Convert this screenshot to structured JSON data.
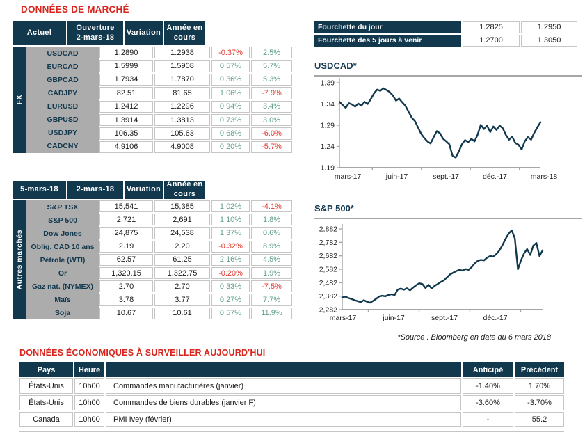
{
  "titles": {
    "market": "DONNÉES DE MARCHÉ",
    "econ": "DONNÉES ÉCONOMIQUES À SURVEILLER AUJOURD'HUI"
  },
  "colors": {
    "navy": "#12384E",
    "title_red": "#D9251D",
    "positive_green": "#5FA08B",
    "negative_red": "#E03A31",
    "label_gray_bg": "#ACACAC",
    "axis_gray": "#A6A6A6"
  },
  "fx": {
    "group": "FX",
    "headers": [
      {
        "l1": "Actuel",
        "l2": ""
      },
      {
        "l1": "Ouverture",
        "l2": "2-mars-18"
      },
      {
        "l1": "Variation",
        "l2": ""
      },
      {
        "l1": "Année en",
        "l2": "cours"
      }
    ],
    "rows": [
      {
        "label": "USDCAD",
        "v1": "1.2890",
        "v2": "1.2938",
        "var": "-0.37%",
        "varc": "neg",
        "ytd": "2.5%",
        "ytdc": "pos"
      },
      {
        "label": "EURCAD",
        "v1": "1.5999",
        "v2": "1.5908",
        "var": "0.57%",
        "varc": "pos",
        "ytd": "5.7%",
        "ytdc": "pos"
      },
      {
        "label": "GBPCAD",
        "v1": "1.7934",
        "v2": "1.7870",
        "var": "0.36%",
        "varc": "pos",
        "ytd": "5.3%",
        "ytdc": "pos"
      },
      {
        "label": "CADJPY",
        "v1": "82.51",
        "v2": "81.65",
        "var": "1.06%",
        "varc": "pos",
        "ytd": "-7.9%",
        "ytdc": "neg"
      },
      {
        "label": "EURUSD",
        "v1": "1.2412",
        "v2": "1.2296",
        "var": "0.94%",
        "varc": "pos",
        "ytd": "3.4%",
        "ytdc": "pos"
      },
      {
        "label": "GBPUSD",
        "v1": "1.3914",
        "v2": "1.3813",
        "var": "0.73%",
        "varc": "pos",
        "ytd": "3.0%",
        "ytdc": "pos"
      },
      {
        "label": "USDJPY",
        "v1": "106.35",
        "v2": "105.63",
        "var": "0.68%",
        "varc": "pos",
        "ytd": "-6.0%",
        "ytdc": "neg"
      },
      {
        "label": "CADCNY",
        "v1": "4.9106",
        "v2": "4.9008",
        "var": "0.20%",
        "varc": "pos",
        "ytd": "-5.7%",
        "ytdc": "neg"
      }
    ]
  },
  "markets": {
    "group": "Autres marchés",
    "headers": [
      {
        "l1": "5-mars-18",
        "l2": ""
      },
      {
        "l1": "2-mars-18",
        "l2": ""
      },
      {
        "l1": "Variation",
        "l2": ""
      },
      {
        "l1": "Année en",
        "l2": "cours"
      }
    ],
    "rows": [
      {
        "label": "S&P TSX",
        "v1": "15,541",
        "v2": "15,385",
        "var": "1.02%",
        "varc": "pos",
        "ytd": "-4.1%",
        "ytdc": "neg"
      },
      {
        "label": "S&P 500",
        "v1": "2,721",
        "v2": "2,691",
        "var": "1.10%",
        "varc": "pos",
        "ytd": "1.8%",
        "ytdc": "pos"
      },
      {
        "label": "Dow Jones",
        "v1": "24,875",
        "v2": "24,538",
        "var": "1.37%",
        "varc": "pos",
        "ytd": "0.6%",
        "ytdc": "pos"
      },
      {
        "label": "Oblig. CAD 10 ans",
        "v1": "2.19",
        "v2": "2.20",
        "var": "-0.32%",
        "varc": "neg",
        "ytd": "8.9%",
        "ytdc": "pos"
      },
      {
        "label": "Pétrole (WTI)",
        "v1": "62.57",
        "v2": "61.25",
        "var": "2.16%",
        "varc": "pos",
        "ytd": "4.5%",
        "ytdc": "pos"
      },
      {
        "label": "Or",
        "v1": "1,320.15",
        "v2": "1,322.75",
        "var": "-0.20%",
        "varc": "neg",
        "ytd": "1.9%",
        "ytdc": "pos"
      },
      {
        "label": "Gaz nat. (NYMEX)",
        "v1": "2.70",
        "v2": "2.70",
        "var": "0.33%",
        "varc": "pos",
        "ytd": "-7.5%",
        "ytdc": "neg"
      },
      {
        "label": "Maïs",
        "v1": "3.78",
        "v2": "3.77",
        "var": "0.27%",
        "varc": "pos",
        "ytd": "7.7%",
        "ytdc": "pos"
      },
      {
        "label": "Soja",
        "v1": "10.67",
        "v2": "10.61",
        "var": "0.57%",
        "varc": "pos",
        "ytd": "11.9%",
        "ytdc": "pos"
      }
    ]
  },
  "range": {
    "rows": [
      {
        "label": "Fourchette du jour",
        "low": "1.2825",
        "high": "1.2950"
      },
      {
        "label": "Fourchette des 5 jours à venir",
        "low": "1.2700",
        "high": "1.3050"
      }
    ]
  },
  "source_note": "*Source : Bloomberg en date du  6 mars 2018",
  "chart_data": [
    {
      "type": "line",
      "title": "USDCAD*",
      "xlabel": "",
      "ylabel": "",
      "ylim": [
        1.19,
        1.39
      ],
      "ytick_labels": [
        "1.39",
        "1.34",
        "1.29",
        "1.24",
        "1.19"
      ],
      "xticks": [
        "mars-17",
        "juin-17",
        "sept.-17",
        "déc.-17",
        "mars-18"
      ],
      "legend": "none",
      "grid": false,
      "line_color": "#12384E",
      "values": [
        1.345,
        1.338,
        1.331,
        1.342,
        1.339,
        1.334,
        1.341,
        1.336,
        1.345,
        1.34,
        1.352,
        1.365,
        1.374,
        1.371,
        1.377,
        1.373,
        1.368,
        1.36,
        1.348,
        1.353,
        1.344,
        1.336,
        1.322,
        1.308,
        1.3,
        1.285,
        1.27,
        1.26,
        1.252,
        1.247,
        1.262,
        1.276,
        1.271,
        1.258,
        1.252,
        1.245,
        1.218,
        1.214,
        1.228,
        1.245,
        1.255,
        1.25,
        1.258,
        1.252,
        1.268,
        1.291,
        1.281,
        1.289,
        1.274,
        1.287,
        1.279,
        1.289,
        1.283,
        1.267,
        1.256,
        1.263,
        1.248,
        1.244,
        1.233,
        1.252,
        1.262,
        1.256,
        1.272,
        1.285,
        1.297
      ]
    },
    {
      "type": "line",
      "title": "S&P 500*",
      "xlabel": "",
      "ylabel": "",
      "ylim": [
        2282,
        2882
      ],
      "ytick_labels": [
        "2,882",
        "2,782",
        "2,682",
        "2,582",
        "2,482",
        "2,382",
        "2,282"
      ],
      "xticks": [
        "mars-17",
        "juin-17",
        "sept.-17",
        "déc.-17"
      ],
      "legend": "none",
      "grid": false,
      "line_color": "#12384E",
      "values": [
        2372,
        2378,
        2368,
        2361,
        2352,
        2345,
        2338,
        2352,
        2341,
        2333,
        2346,
        2362,
        2379,
        2385,
        2381,
        2391,
        2396,
        2390,
        2431,
        2438,
        2430,
        2441,
        2426,
        2446,
        2463,
        2478,
        2472,
        2443,
        2466,
        2439,
        2459,
        2473,
        2488,
        2500,
        2522,
        2544,
        2556,
        2568,
        2578,
        2572,
        2583,
        2578,
        2598,
        2626,
        2645,
        2652,
        2648,
        2668,
        2681,
        2676,
        2695,
        2722,
        2762,
        2808,
        2848,
        2871,
        2812,
        2582,
        2648,
        2700,
        2732,
        2688,
        2758,
        2778,
        2680,
        2722
      ]
    }
  ],
  "econ": {
    "headers": [
      "Pays",
      "Heure",
      "",
      "Anticipé",
      "Précédent"
    ],
    "rows": [
      {
        "0": "États-Unis",
        "1": "10h00",
        "2": "Commandes manufacturières (janvier)",
        "3": "-1.40%",
        "4": "1.70%"
      },
      {
        "0": "États-Unis",
        "1": "10h00",
        "2": "Commandes de biens durables (janvier F)",
        "3": "-3.60%",
        "4": "-3.70%"
      },
      {
        "0": "Canada",
        "1": "10h00",
        "2": "PMI Ivey (février)",
        "3": "-",
        "4": "55.2"
      }
    ]
  }
}
